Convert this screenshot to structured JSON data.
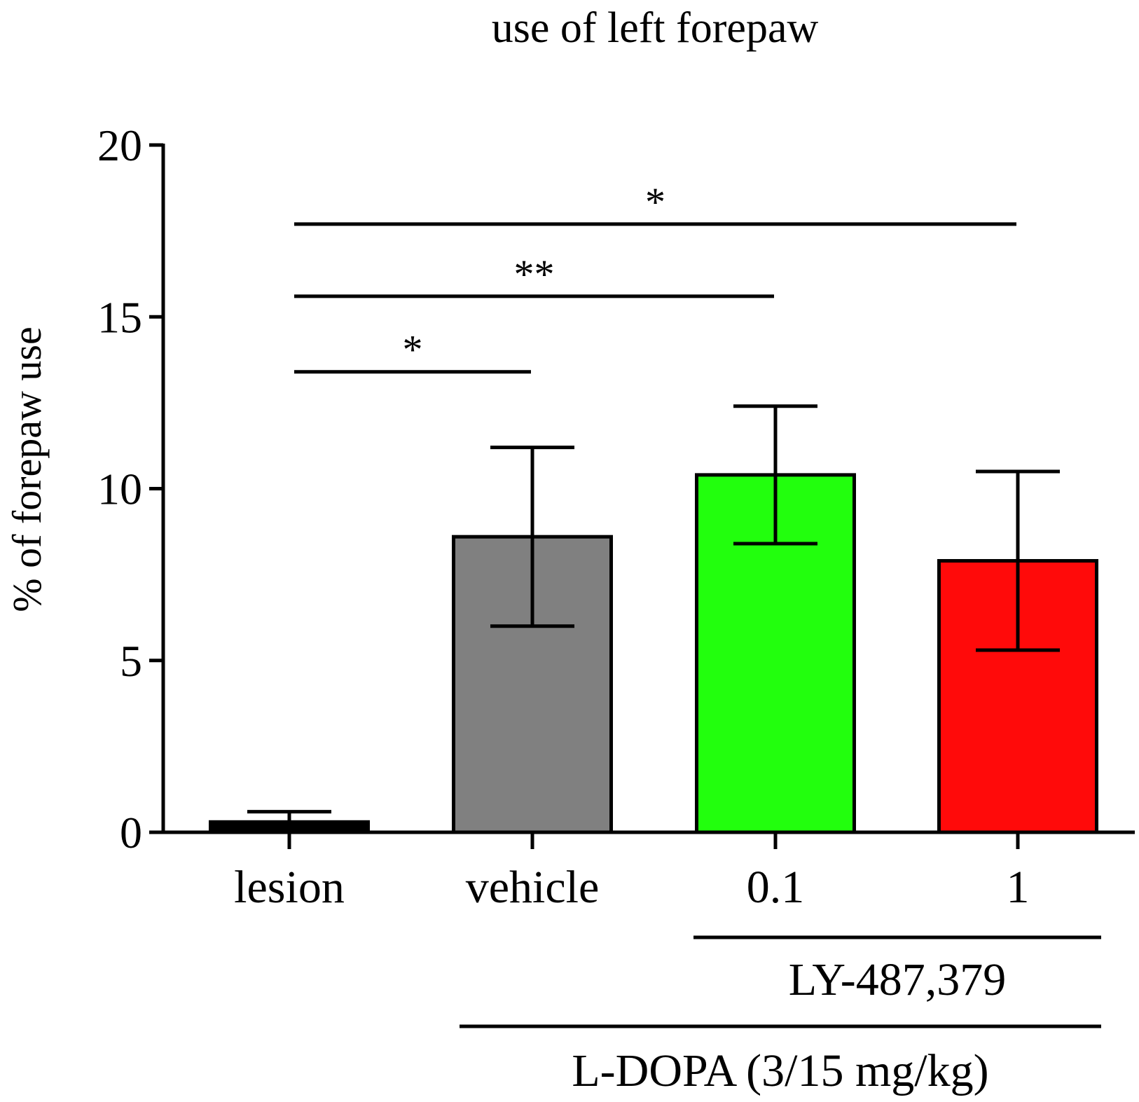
{
  "chart_data": {
    "type": "bar",
    "title": "use of left forepaw",
    "xlabel": "",
    "ylabel": "% of forepaw use",
    "ylim": [
      0,
      20
    ],
    "yticks": [
      "0",
      "5",
      "10",
      "15",
      "20"
    ],
    "categories": [
      "lesion",
      "vehicle",
      "0.1",
      "1"
    ],
    "values": [
      0.3,
      8.6,
      10.4,
      7.9
    ],
    "errors": [
      0.3,
      2.6,
      2.0,
      2.6
    ],
    "colors": [
      "#000000",
      "#808080",
      "#22ff0d",
      "#ff0a0a"
    ],
    "group_labels": [
      {
        "text": "LY-487,379",
        "from": 2,
        "to": 3
      },
      {
        "text": "L-DOPA (3/15 mg/kg)",
        "from": 1,
        "to": 3
      }
    ],
    "significance": [
      {
        "from": 0,
        "to": 1,
        "y": 13.4,
        "label": "*"
      },
      {
        "from": 0,
        "to": 2,
        "y": 15.6,
        "label": "**"
      },
      {
        "from": 0,
        "to": 3,
        "y": 17.7,
        "label": "*"
      }
    ],
    "grid": false,
    "legend": "none"
  }
}
